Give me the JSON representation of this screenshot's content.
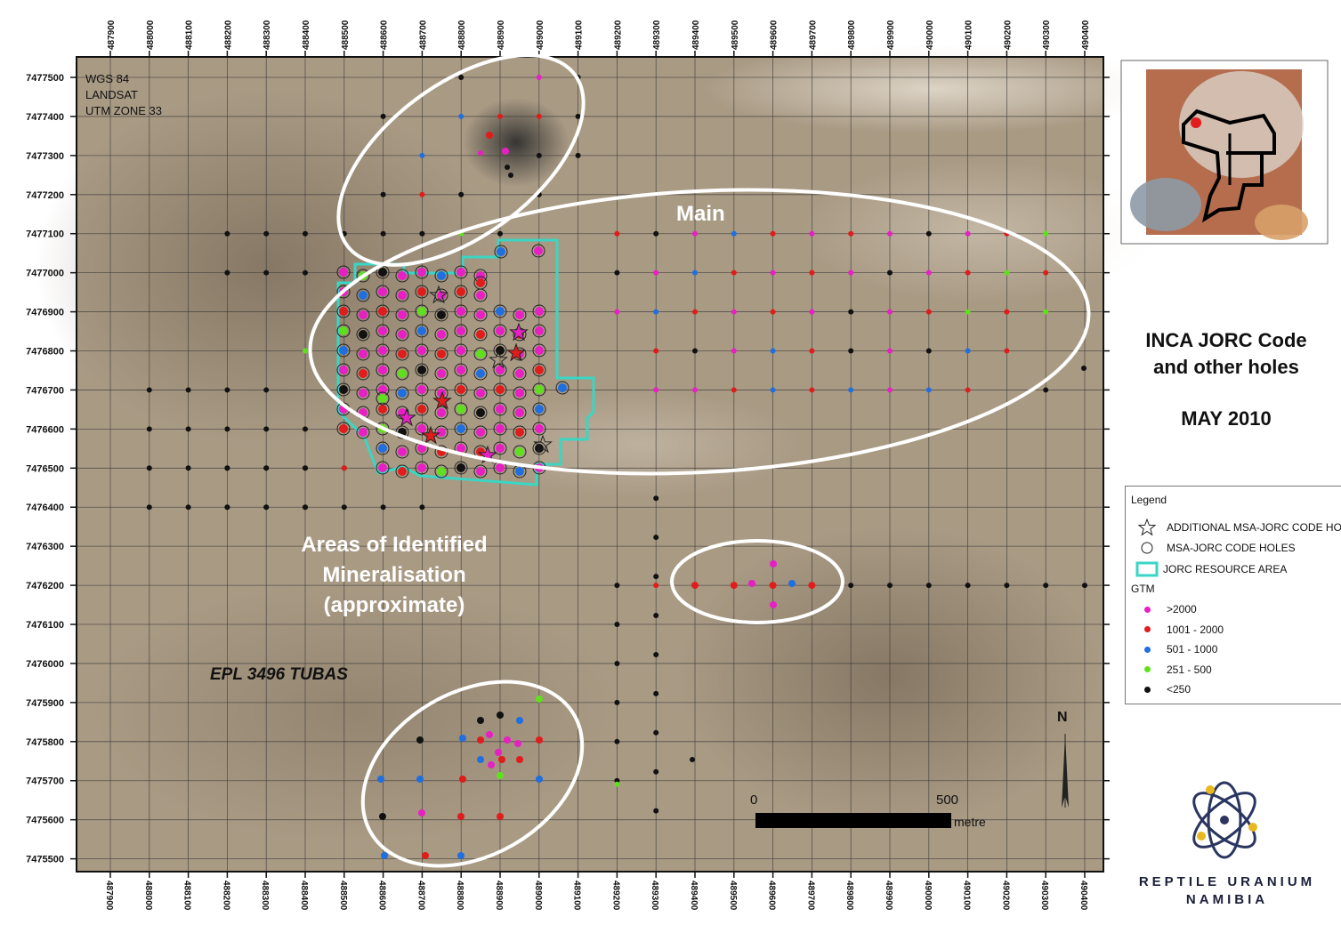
{
  "projection": [
    "WGS 84",
    "LANDSAT",
    "UTM ZONE 33"
  ],
  "x_ticks": [
    "487900",
    "488000",
    "488100",
    "488200",
    "488300",
    "488400",
    "488500",
    "488600",
    "488700",
    "488800",
    "488900",
    "489000",
    "489100",
    "489200",
    "489300",
    "489400",
    "489500",
    "489600",
    "489700",
    "489800",
    "489900",
    "490000",
    "490100",
    "490200",
    "490300",
    "490400"
  ],
  "y_ticks": [
    "7477500",
    "7477400",
    "7477300",
    "7477200",
    "7477100",
    "7477000",
    "7476900",
    "7476800",
    "7476700",
    "7476600",
    "7476500",
    "7476400",
    "7476300",
    "7476200",
    "7476100",
    "7476000",
    "7475900",
    "7475800",
    "7475700",
    "7475600",
    "7475500"
  ],
  "zones": {
    "main": "Main",
    "mineralisation": [
      "Areas of Identified",
      "Mineralisation",
      "(approximate)"
    ]
  },
  "epl_label": "EPL 3496 TUBAS",
  "title": [
    "INCA JORC Code",
    "and other holes",
    "MAY 2010"
  ],
  "legend": {
    "title": "Legend",
    "items": [
      {
        "symbol": "star-icon",
        "label": "ADDITIONAL MSA-JORC CODE HOLES"
      },
      {
        "symbol": "circle-icon",
        "label": "MSA-JORC CODE HOLES"
      },
      {
        "symbol": "jorc-area-icon",
        "label": "JORC RESOURCE AREA"
      }
    ],
    "gtm_title": "GTM",
    "gtm": [
      {
        "label": ">2000",
        "color": "#e81fc4"
      },
      {
        "label": "1001 - 2000",
        "color": "#e01c1c"
      },
      {
        "label": "501 - 1000",
        "color": "#1f6fe0"
      },
      {
        "label": "251 - 500",
        "color": "#5ee11c"
      },
      {
        "label": "<250",
        "color": "#111111"
      }
    ]
  },
  "scale": {
    "start": "0",
    "end": "500",
    "unit": "metre"
  },
  "north": "N",
  "company": [
    "REPTILE URANIUM",
    "NAMIBIA"
  ],
  "colors": {
    "jorc_outline": "#3ad6c4",
    "zone_ellipse": "#ffffff"
  }
}
